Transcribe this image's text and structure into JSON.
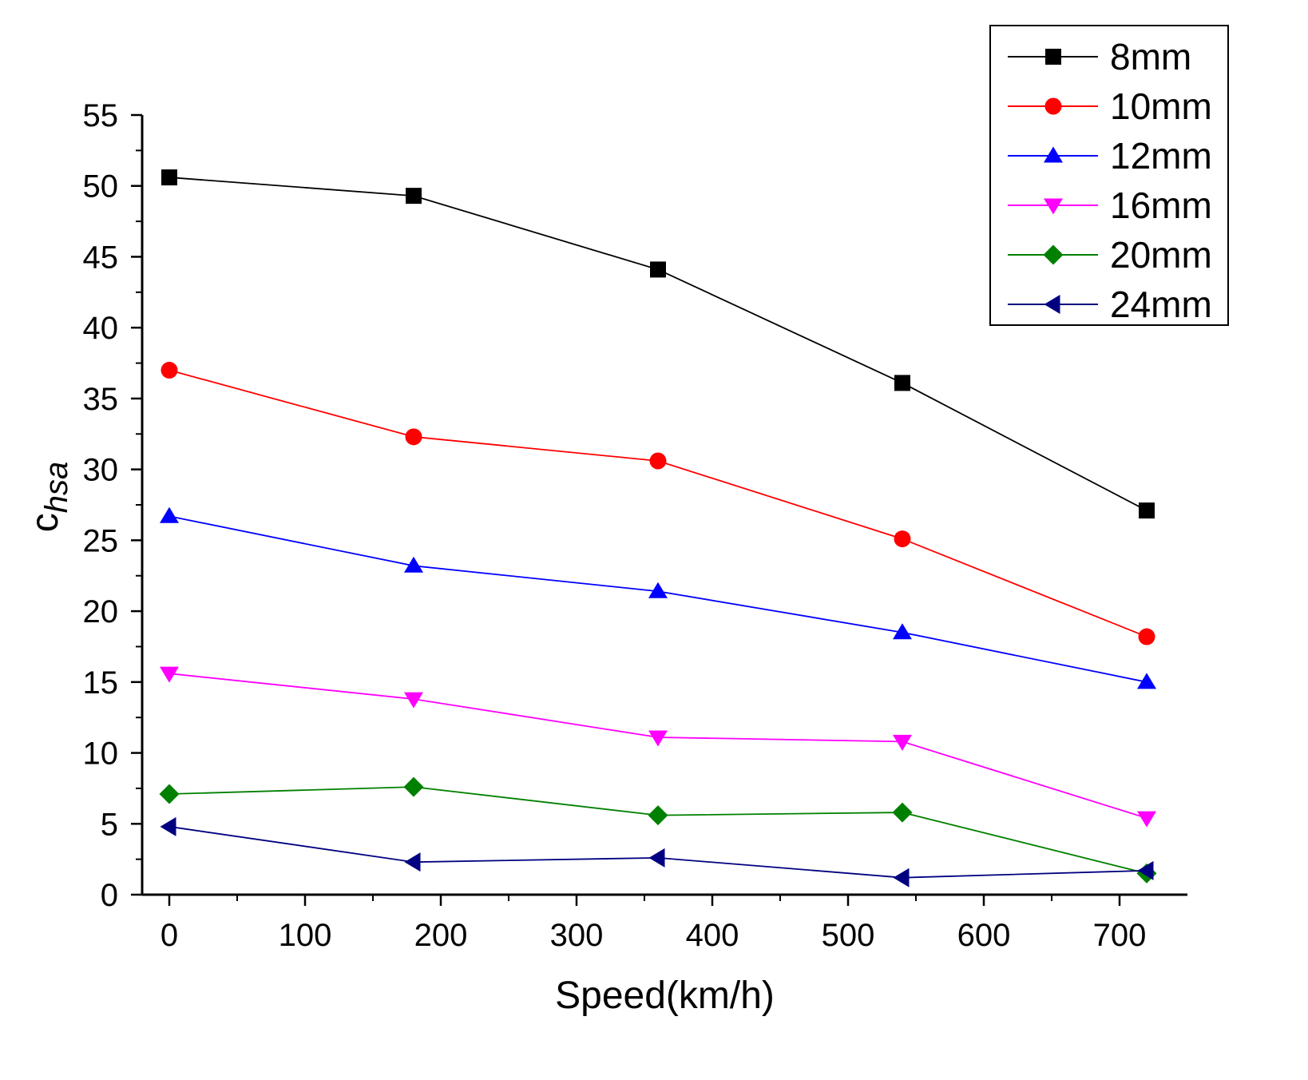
{
  "chart_data": {
    "type": "line",
    "xlabel": "Speed(km/h)",
    "ylabel": {
      "base": "c",
      "subscript": "hsa"
    },
    "xlim": [
      -20,
      750
    ],
    "ylim": [
      0,
      55
    ],
    "xticks": [
      0,
      100,
      200,
      300,
      400,
      500,
      600,
      700
    ],
    "yticks": [
      0,
      5,
      10,
      15,
      20,
      25,
      30,
      35,
      40,
      45,
      50,
      55
    ],
    "grid": false,
    "legend_position": "top-right",
    "x": [
      0,
      180,
      360,
      540,
      720
    ],
    "series": [
      {
        "name": "8mm",
        "color": "#000000",
        "marker": "square",
        "values": [
          50.6,
          49.3,
          44.1,
          36.1,
          27.1
        ]
      },
      {
        "name": "10mm",
        "color": "#ff0000",
        "marker": "circle",
        "values": [
          37.0,
          32.3,
          30.6,
          25.1,
          18.2
        ]
      },
      {
        "name": "12mm",
        "color": "#0000ff",
        "marker": "triangle-up",
        "values": [
          26.7,
          23.2,
          21.4,
          18.5,
          15.0
        ]
      },
      {
        "name": "16mm",
        "color": "#ff00ff",
        "marker": "triangle-down",
        "values": [
          15.6,
          13.8,
          11.1,
          10.8,
          5.4
        ]
      },
      {
        "name": "20mm",
        "color": "#008000",
        "marker": "diamond",
        "values": [
          7.1,
          7.6,
          5.6,
          5.8,
          1.5
        ]
      },
      {
        "name": "24mm",
        "color": "#000080",
        "marker": "triangle-left",
        "values": [
          4.8,
          2.3,
          2.6,
          1.2,
          1.7
        ]
      }
    ]
  }
}
